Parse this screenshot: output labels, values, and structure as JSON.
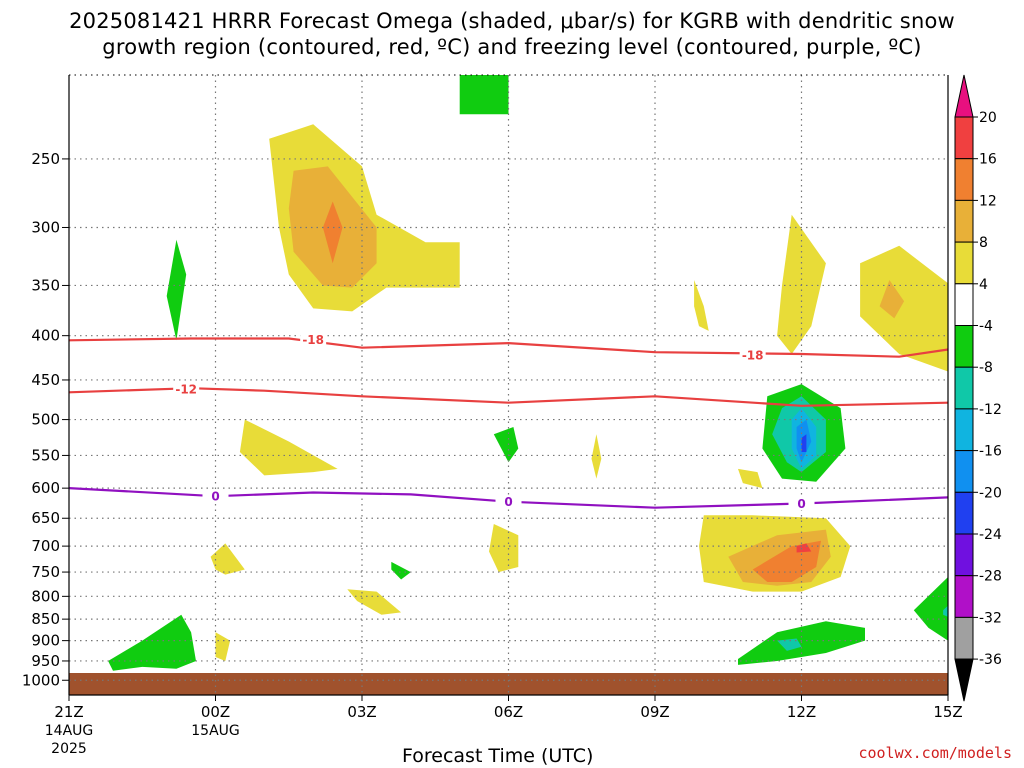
{
  "title": {
    "line1": "2025081421 HRRR Forecast Omega (shaded, μbar/s) for KGRB with dendritic snow",
    "line2": "growth region (contoured, red, ºC) and freezing level (contoured, purple, ºC)"
  },
  "footer_link": "coolwx.com/models",
  "chart_data": {
    "type": "heatmap",
    "title": "2025081421 HRRR Forecast Omega (shaded, μbar/s) for KGRB with dendritic snow growth region (contoured, red, ºC) and freezing level (contoured, purple, ºC)",
    "xlabel": "Forecast Time (UTC)",
    "ylabel": "",
    "x_range_hours_after_21Z_14AUG": [
      0,
      18
    ],
    "y_range_hPa": [
      1040,
      200
    ],
    "y_scale": "log-pressure (inverted)",
    "grid": true,
    "x_ticks": [
      {
        "label": "21Z",
        "hour": 0,
        "date": "14AUG",
        "year": "2025"
      },
      {
        "label": "00Z",
        "hour": 3,
        "date": "15AUG",
        "year": ""
      },
      {
        "label": "03Z",
        "hour": 6,
        "date": "",
        "year": ""
      },
      {
        "label": "06Z",
        "hour": 9,
        "date": "",
        "year": ""
      },
      {
        "label": "09Z",
        "hour": 12,
        "date": "",
        "year": ""
      },
      {
        "label": "12Z",
        "hour": 15,
        "date": "",
        "year": ""
      },
      {
        "label": "15Z",
        "hour": 18,
        "date": "",
        "year": ""
      }
    ],
    "y_ticks": [
      250,
      300,
      350,
      400,
      450,
      500,
      550,
      600,
      650,
      700,
      750,
      800,
      850,
      900,
      950,
      1000
    ],
    "colorbar": {
      "levels": [
        {
          "label": "20",
          "color": "#f03070"
        },
        {
          "label": "16",
          "color": "#f04040"
        },
        {
          "label": "12",
          "color": "#f08030"
        },
        {
          "label": "8",
          "color": "#e8b038"
        },
        {
          "label": "4",
          "color": "#e8dc38"
        },
        {
          "label": "-4",
          "color": "#ffffff"
        },
        {
          "label": "-8",
          "color": "#10cc10"
        },
        {
          "label": "-12",
          "color": "#10c8a8"
        },
        {
          "label": "-16",
          "color": "#10b4e0"
        },
        {
          "label": "-20",
          "color": "#1090f0"
        },
        {
          "label": "-24",
          "color": "#2040f0"
        },
        {
          "label": "-28",
          "color": "#7010e0"
        },
        {
          "label": "-32",
          "color": "#b010c8"
        },
        {
          "label": "-36",
          "color": "#a0a0a0"
        }
      ],
      "top_cap_color": "#e8107f",
      "bottom_cap_color": "#000000"
    },
    "ground_color": "#a0522d",
    "contours": [
      {
        "name": "-18 ºC isotherm",
        "color": "#e84040",
        "label": "-18",
        "points": [
          [
            0,
            405
          ],
          [
            2.5,
            403
          ],
          [
            4.5,
            403
          ],
          [
            6,
            413
          ],
          [
            9,
            408
          ],
          [
            12,
            418
          ],
          [
            15,
            420
          ],
          [
            17,
            423
          ],
          [
            18,
            415
          ]
        ],
        "labels_at": [
          [
            5,
            404
          ],
          [
            14,
            421
          ]
        ]
      },
      {
        "name": "-12 ºC isotherm",
        "color": "#e84040",
        "label": "-12",
        "points": [
          [
            0,
            465
          ],
          [
            2.5,
            460
          ],
          [
            4,
            463
          ],
          [
            6,
            470
          ],
          [
            9,
            478
          ],
          [
            12,
            470
          ],
          [
            15,
            482
          ],
          [
            18,
            478
          ]
        ],
        "labels_at": [
          [
            2.4,
            461
          ]
        ]
      },
      {
        "name": "0 ºC isotherm (freezing level)",
        "color": "#9010c0",
        "label": "0",
        "points": [
          [
            0,
            600
          ],
          [
            3,
            613
          ],
          [
            5,
            607
          ],
          [
            7,
            610
          ],
          [
            9,
            622
          ],
          [
            12,
            632
          ],
          [
            15,
            625
          ],
          [
            18,
            615
          ]
        ],
        "labels_at": [
          [
            3,
            613
          ],
          [
            9,
            622
          ],
          [
            15,
            625
          ]
        ]
      }
    ],
    "shaded_regions": [
      {
        "omega_level": "4",
        "points": [
          [
            4.1,
            237
          ],
          [
            5,
            228
          ],
          [
            6,
            255
          ],
          [
            6.3,
            290
          ],
          [
            7.3,
            312
          ],
          [
            8,
            312
          ],
          [
            8,
            352
          ],
          [
            6.5,
            352
          ],
          [
            5.8,
            375
          ],
          [
            5,
            372
          ],
          [
            4.5,
            340
          ],
          [
            4.3,
            300
          ]
        ]
      },
      {
        "omega_level": "8",
        "points": [
          [
            4.6,
            258
          ],
          [
            5.3,
            255
          ],
          [
            6.3,
            300
          ],
          [
            6.3,
            330
          ],
          [
            5.8,
            352
          ],
          [
            5.2,
            350
          ],
          [
            4.6,
            320
          ],
          [
            4.5,
            285
          ]
        ]
      },
      {
        "omega_level": "12",
        "points": [
          [
            5.4,
            280
          ],
          [
            5.6,
            300
          ],
          [
            5.4,
            330
          ],
          [
            5.2,
            300
          ]
        ]
      },
      {
        "omega_level": "-8",
        "points": [
          [
            2.2,
            310
          ],
          [
            2.4,
            340
          ],
          [
            2.2,
            405
          ],
          [
            2,
            360
          ]
        ]
      },
      {
        "omega_level": "-8",
        "points": [
          [
            8,
            200
          ],
          [
            9,
            200
          ],
          [
            9,
            222
          ],
          [
            8,
            222
          ]
        ]
      },
      {
        "omega_level": "4",
        "points": [
          [
            3.6,
            500
          ],
          [
            4.5,
            530
          ],
          [
            5.5,
            570
          ],
          [
            5,
            575
          ],
          [
            4,
            580
          ],
          [
            3.5,
            545
          ]
        ]
      },
      {
        "omega_level": "-8",
        "points": [
          [
            8.7,
            520
          ],
          [
            9.1,
            510
          ],
          [
            9.2,
            540
          ],
          [
            9,
            560
          ]
        ]
      },
      {
        "omega_level": "4",
        "points": [
          [
            10.8,
            520
          ],
          [
            10.9,
            555
          ],
          [
            10.8,
            585
          ],
          [
            10.7,
            555
          ]
        ]
      },
      {
        "omega_level": "4",
        "points": [
          [
            12.8,
            345
          ],
          [
            13,
            370
          ],
          [
            13.1,
            395
          ],
          [
            12.9,
            390
          ],
          [
            12.8,
            370
          ]
        ]
      },
      {
        "omega_level": "4",
        "points": [
          [
            14.8,
            290
          ],
          [
            15.5,
            330
          ],
          [
            15.2,
            390
          ],
          [
            14.8,
            420
          ],
          [
            14.5,
            400
          ],
          [
            14.6,
            350
          ]
        ]
      },
      {
        "omega_level": "4",
        "points": [
          [
            16.2,
            330
          ],
          [
            17,
            315
          ],
          [
            18,
            348
          ],
          [
            18,
            440
          ],
          [
            17,
            420
          ],
          [
            16.2,
            380
          ]
        ]
      },
      {
        "omega_level": "8",
        "points": [
          [
            16.8,
            345
          ],
          [
            17.1,
            365
          ],
          [
            16.9,
            382
          ],
          [
            16.6,
            370
          ]
        ]
      },
      {
        "omega_level": "4",
        "points": [
          [
            13.7,
            570
          ],
          [
            14.1,
            575
          ],
          [
            14.2,
            600
          ],
          [
            13.8,
            592
          ]
        ]
      },
      {
        "omega_level": "-8",
        "points": [
          [
            14.3,
            470
          ],
          [
            15,
            455
          ],
          [
            15.8,
            485
          ],
          [
            15.9,
            540
          ],
          [
            15.3,
            590
          ],
          [
            14.6,
            585
          ],
          [
            14.2,
            540
          ]
        ]
      },
      {
        "omega_level": "-12",
        "points": [
          [
            14.6,
            485
          ],
          [
            15,
            470
          ],
          [
            15.5,
            500
          ],
          [
            15.5,
            545
          ],
          [
            15,
            575
          ],
          [
            14.7,
            560
          ],
          [
            14.4,
            520
          ]
        ]
      },
      {
        "omega_level": "-16",
        "points": [
          [
            14.8,
            500
          ],
          [
            15,
            485
          ],
          [
            15.3,
            510
          ],
          [
            15.3,
            550
          ],
          [
            15,
            570
          ],
          [
            14.8,
            540
          ]
        ]
      },
      {
        "omega_level": "-20",
        "points": [
          [
            14.9,
            510
          ],
          [
            15.1,
            500
          ],
          [
            15.2,
            530
          ],
          [
            15,
            560
          ],
          [
            14.9,
            540
          ]
        ]
      },
      {
        "omega_level": "-24",
        "points": [
          [
            15,
            525
          ],
          [
            15.1,
            520
          ],
          [
            15.1,
            545
          ],
          [
            15,
            545
          ]
        ]
      },
      {
        "omega_level": "4",
        "points": [
          [
            13,
            645
          ],
          [
            14,
            645
          ],
          [
            15.5,
            650
          ],
          [
            16,
            700
          ],
          [
            15.8,
            760
          ],
          [
            15,
            790
          ],
          [
            14,
            790
          ],
          [
            13,
            770
          ],
          [
            12.9,
            700
          ]
        ]
      },
      {
        "omega_level": "8",
        "points": [
          [
            13.5,
            720
          ],
          [
            14.5,
            680
          ],
          [
            15.5,
            670
          ],
          [
            15.6,
            720
          ],
          [
            15.2,
            770
          ],
          [
            14.5,
            778
          ],
          [
            13.8,
            770
          ]
        ]
      },
      {
        "omega_level": "12",
        "points": [
          [
            14,
            745
          ],
          [
            14.8,
            700
          ],
          [
            15.4,
            690
          ],
          [
            15.3,
            740
          ],
          [
            14.8,
            770
          ],
          [
            14.3,
            770
          ]
        ]
      },
      {
        "omega_level": "16",
        "points": [
          [
            14.9,
            700
          ],
          [
            15.1,
            695
          ],
          [
            15.2,
            710
          ],
          [
            14.9,
            712
          ]
        ]
      },
      {
        "omega_level": "4",
        "points": [
          [
            2.9,
            720
          ],
          [
            3.2,
            695
          ],
          [
            3.6,
            745
          ],
          [
            3.2,
            755
          ],
          [
            3,
            745
          ]
        ]
      },
      {
        "omega_level": "4",
        "points": [
          [
            8.7,
            660
          ],
          [
            9.2,
            680
          ],
          [
            9.2,
            740
          ],
          [
            8.8,
            750
          ],
          [
            8.6,
            710
          ]
        ]
      },
      {
        "omega_level": "-8",
        "points": [
          [
            6.6,
            730
          ],
          [
            7,
            750
          ],
          [
            6.8,
            765
          ],
          [
            6.6,
            745
          ]
        ]
      },
      {
        "omega_level": "4",
        "points": [
          [
            5.7,
            785
          ],
          [
            6.3,
            790
          ],
          [
            6.8,
            835
          ],
          [
            6.4,
            840
          ],
          [
            5.9,
            810
          ]
        ]
      },
      {
        "omega_level": "4",
        "points": [
          [
            3,
            880
          ],
          [
            3.3,
            900
          ],
          [
            3.2,
            950
          ],
          [
            3,
            940
          ]
        ]
      },
      {
        "omega_level": "-8",
        "points": [
          [
            0.8,
            950
          ],
          [
            1.5,
            900
          ],
          [
            2.3,
            840
          ],
          [
            2.5,
            880
          ],
          [
            2.6,
            950
          ],
          [
            2.2,
            970
          ],
          [
            1.5,
            965
          ],
          [
            0.9,
            975
          ]
        ]
      },
      {
        "omega_level": "-8",
        "points": [
          [
            13.7,
            945
          ],
          [
            14.5,
            880
          ],
          [
            15.5,
            855
          ],
          [
            16.3,
            870
          ],
          [
            16.3,
            900
          ],
          [
            15.5,
            930
          ],
          [
            14.5,
            950
          ],
          [
            13.7,
            960
          ]
        ]
      },
      {
        "omega_level": "-12",
        "points": [
          [
            14.5,
            900
          ],
          [
            14.9,
            895
          ],
          [
            15.0,
            915
          ],
          [
            14.7,
            925
          ]
        ]
      },
      {
        "omega_level": "-8",
        "points": [
          [
            17.3,
            830
          ],
          [
            18,
            760
          ],
          [
            18,
            900
          ],
          [
            17.6,
            870
          ]
        ]
      },
      {
        "omega_level": "-12",
        "points": [
          [
            17.9,
            830
          ],
          [
            18,
            820
          ],
          [
            18,
            845
          ],
          [
            17.9,
            840
          ]
        ]
      }
    ]
  }
}
